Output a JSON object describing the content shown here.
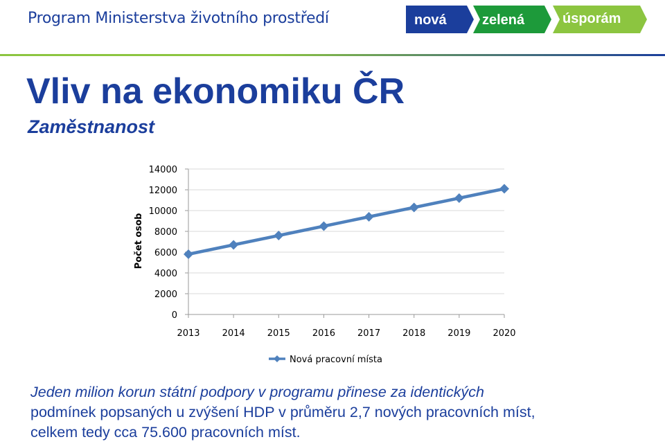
{
  "header": {
    "program_title": "Program Ministerstva životního prostředí",
    "logo": {
      "words": [
        "nová",
        "zelená",
        "úsporám"
      ],
      "colors": [
        "#1b3e9c",
        "#1d9a3a",
        "#8cc540"
      ]
    }
  },
  "slide": {
    "title": "Vliv na ekonomiku ČR",
    "subtitle": "Zaměstnanost"
  },
  "chart_data": {
    "type": "line",
    "x": [
      "2013",
      "2014",
      "2015",
      "2016",
      "2017",
      "2018",
      "2019",
      "2020"
    ],
    "series": [
      {
        "name": "Nová pracovní místa",
        "values": [
          5800,
          6700,
          7600,
          8500,
          9400,
          10300,
          11200,
          12100
        ],
        "color": "#4f81bd"
      }
    ],
    "ylabel": "Počet osob",
    "xlabel": "",
    "ylim": [
      0,
      14000
    ],
    "yticks": [
      0,
      2000,
      4000,
      6000,
      8000,
      10000,
      12000,
      14000
    ],
    "grid": true,
    "legend": "bottom",
    "marker": "diamond"
  },
  "summary": {
    "line1": "Jeden milion korun státní podpory v programu přinese za identických",
    "line2": "podmínek popsaných u zvýšení HDP v průměru 2,7 nových pracovních míst,",
    "line3": "celkem tedy cca 75.600 pracovních míst."
  }
}
